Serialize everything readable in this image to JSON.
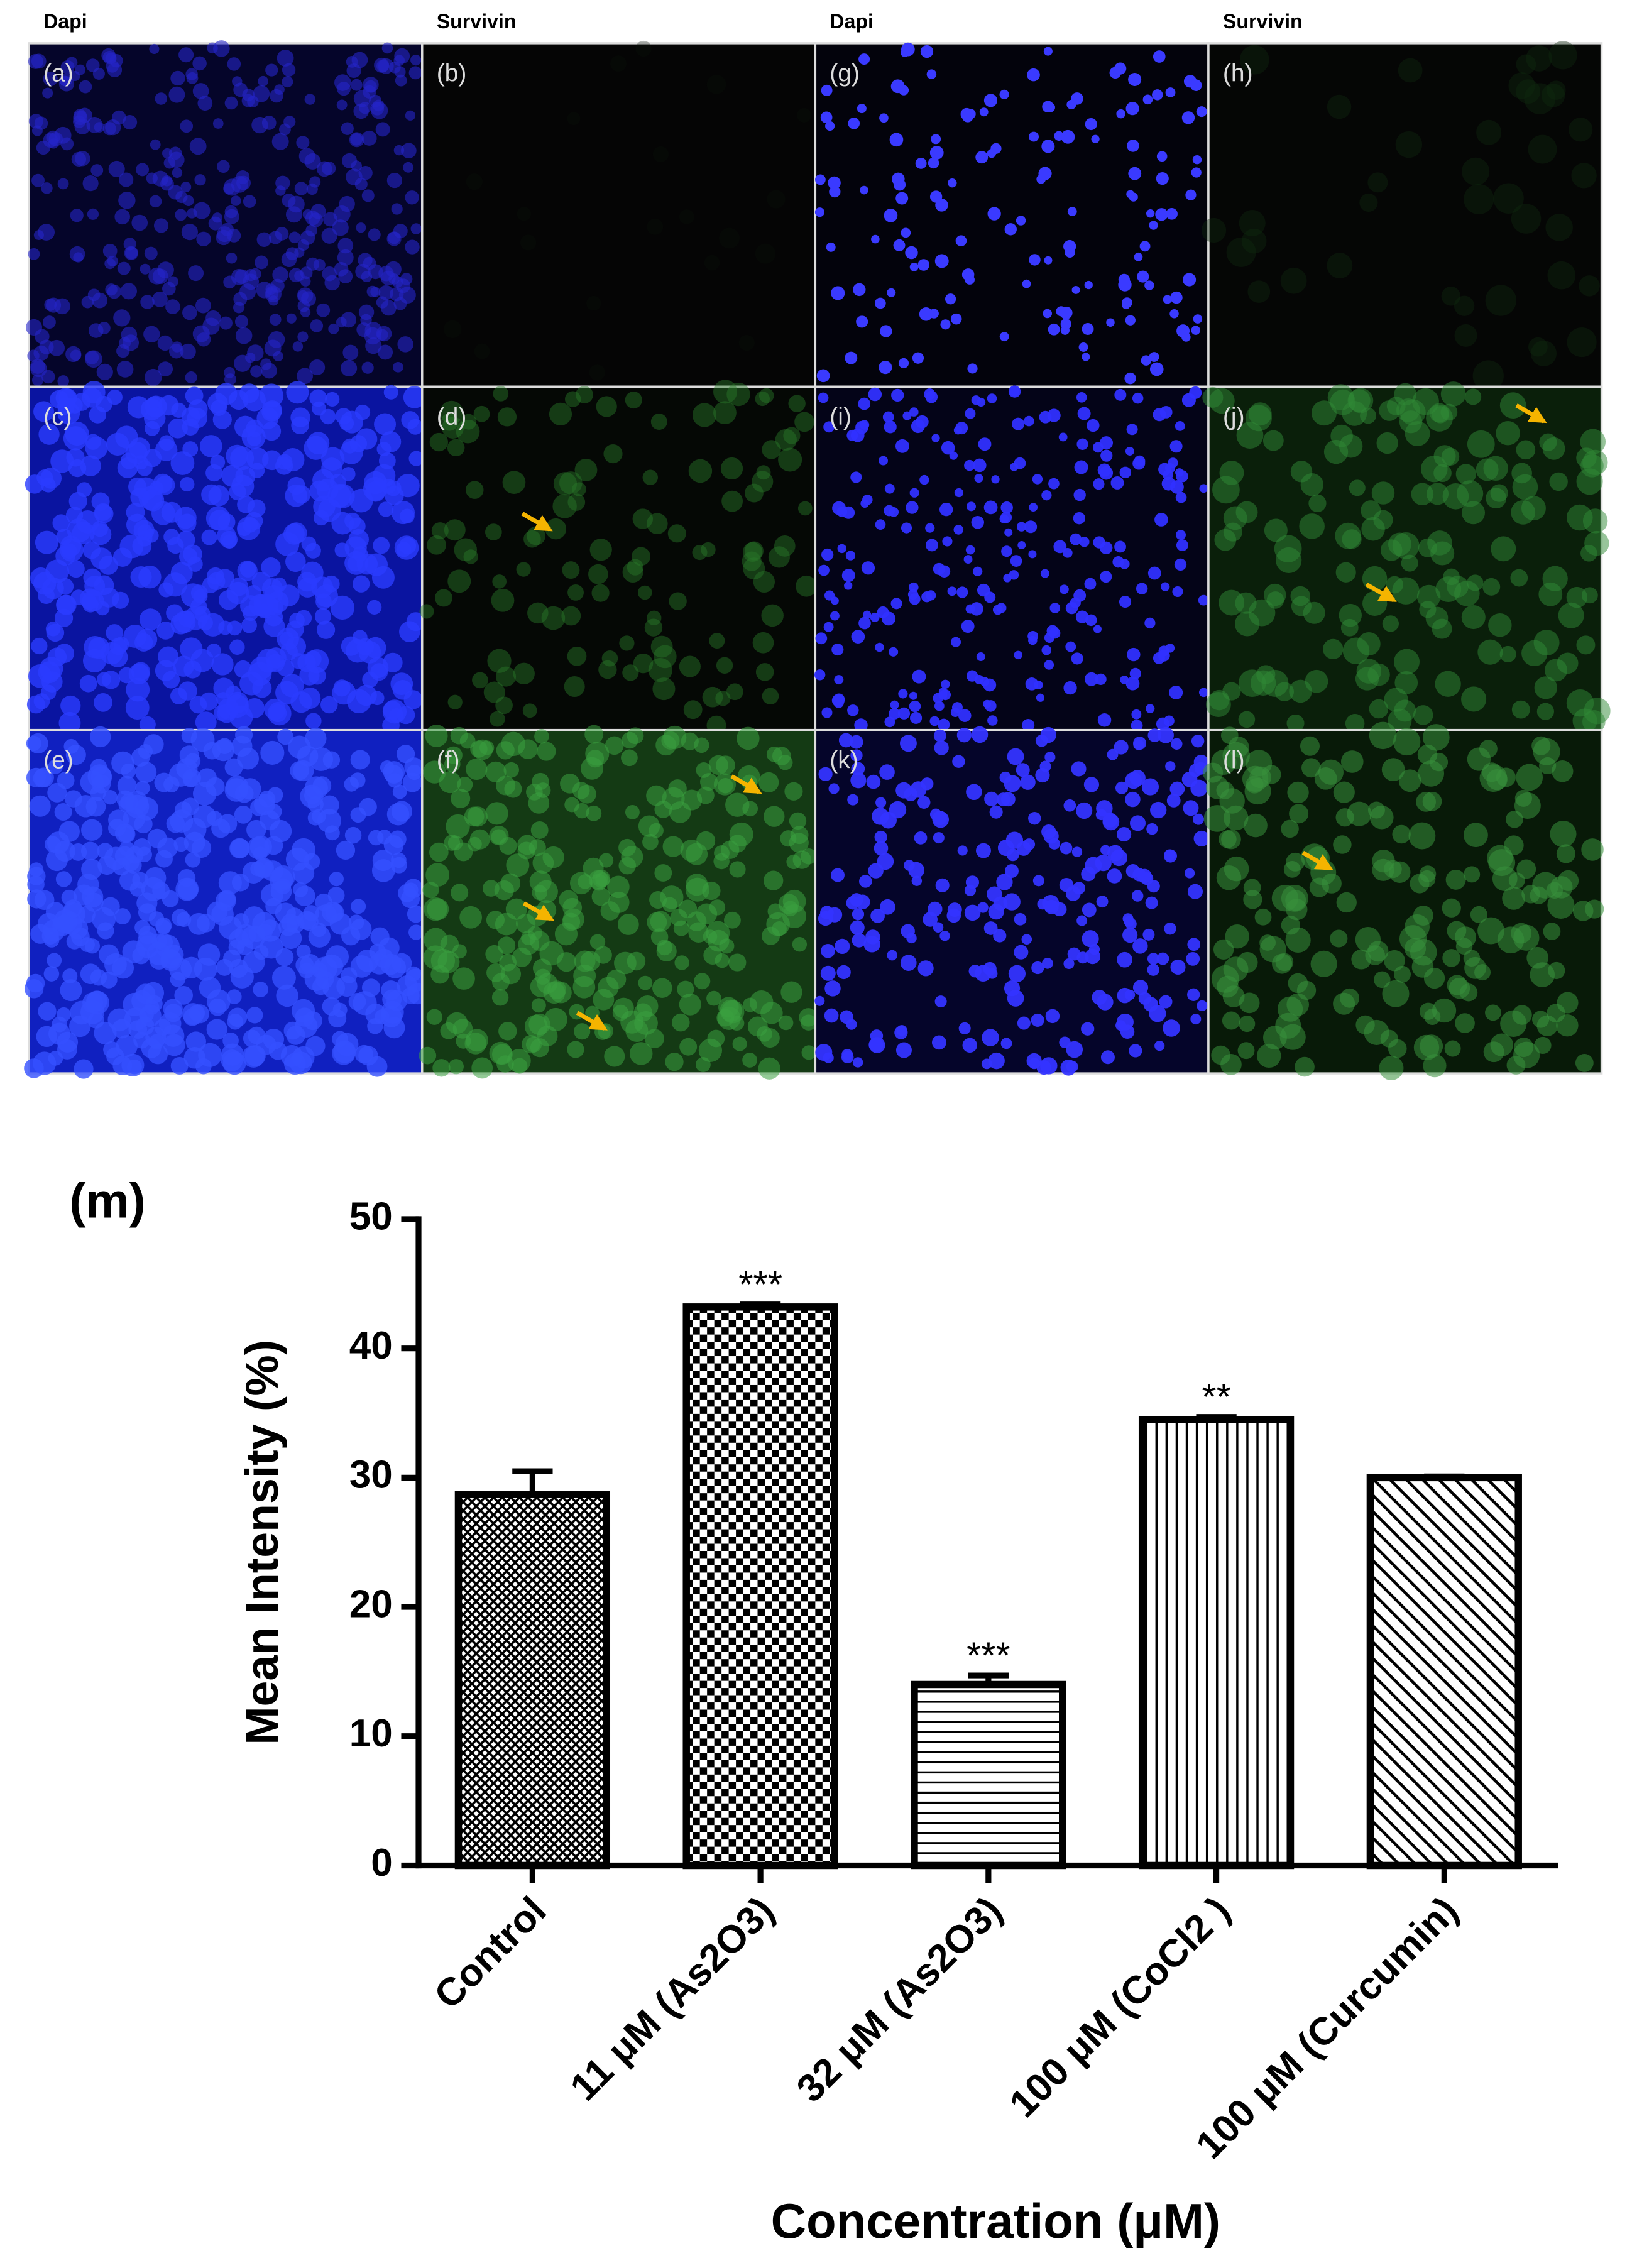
{
  "column_headers": [
    "Dapi",
    "Survivin",
    "Dapi",
    "Survivin"
  ],
  "panels": [
    {
      "label": "(a)"
    },
    {
      "label": "(b)"
    },
    {
      "label": "(g)"
    },
    {
      "label": "(h)"
    },
    {
      "label": "(c)"
    },
    {
      "label": "(d)"
    },
    {
      "label": "(i)"
    },
    {
      "label": "(j)"
    },
    {
      "label": "(e)"
    },
    {
      "label": "(f)"
    },
    {
      "label": "(k)"
    },
    {
      "label": "(l)"
    }
  ],
  "chart_data": {
    "type": "bar",
    "panel_label": "(m)",
    "y_label": "Mean Intensity (%)",
    "x_label": "Concentration (μM)",
    "categories": [
      "Control",
      "11 μM (As2O3)",
      "32 μM (As2O3)",
      "100 μM (CoCl2 )",
      "100 μM (Curcumin)"
    ],
    "values": [
      28.7,
      43.2,
      14.0,
      34.5,
      30.0
    ],
    "errors": [
      1.8,
      0.2,
      0.7,
      0.2,
      0.1
    ],
    "annotations": [
      null,
      "***",
      "***",
      "**",
      null
    ],
    "ylim": [
      0,
      50
    ],
    "yticks": [
      0,
      10,
      20,
      30,
      40,
      50
    ],
    "color": "#000000"
  }
}
